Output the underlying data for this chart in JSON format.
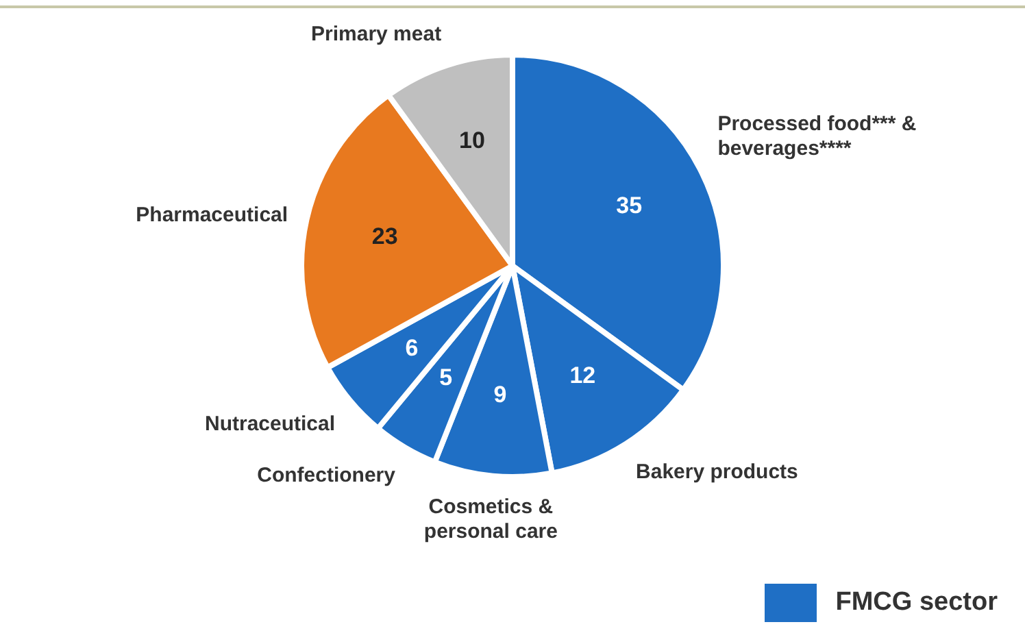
{
  "chart_data": {
    "type": "pie",
    "categories": [
      "Processed food*** & beverages****",
      "Bakery products",
      "Cosmetics & personal care",
      "Confectionery",
      "Nutraceutical",
      "Pharmaceutical",
      "Primary meat"
    ],
    "values": [
      35,
      12,
      9,
      5,
      6,
      23,
      10
    ],
    "colors": [
      "#1f6fc5",
      "#1f6fc5",
      "#1f6fc5",
      "#1f6fc5",
      "#1f6fc5",
      "#e8791f",
      "#bfbfbf"
    ],
    "data_labels": true,
    "annotations": [
      "FMCG sector"
    ]
  }
}
